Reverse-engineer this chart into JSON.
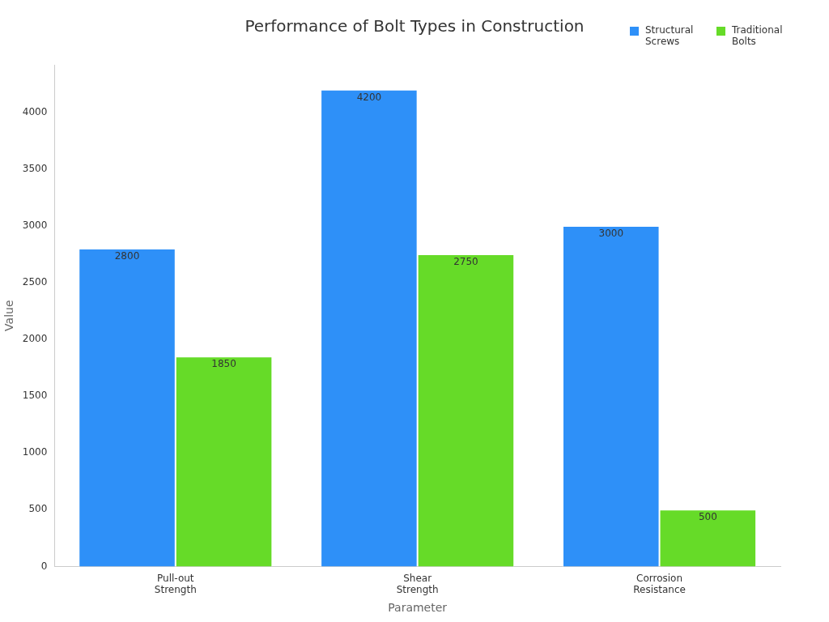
{
  "chart_data": {
    "type": "bar",
    "title": "Performance of Bolt Types in Construction",
    "xlabel": "Parameter",
    "ylabel": "Value",
    "categories": [
      "Pull-out Strength",
      "Shear Strength",
      "Corrosion Resistance"
    ],
    "series": [
      {
        "name": "Structural Screws",
        "color": "#2e90f8",
        "values": [
          2800,
          4200,
          3000
        ]
      },
      {
        "name": "Traditional Bolts",
        "color": "#66db28",
        "values": [
          1850,
          2750,
          500
        ]
      }
    ],
    "ylim": [
      0,
      4420
    ],
    "yticks": [
      0,
      500,
      1000,
      1500,
      2000,
      2500,
      3000,
      3500,
      4000
    ],
    "grid": false,
    "legend": "top right",
    "data_labels": true
  }
}
